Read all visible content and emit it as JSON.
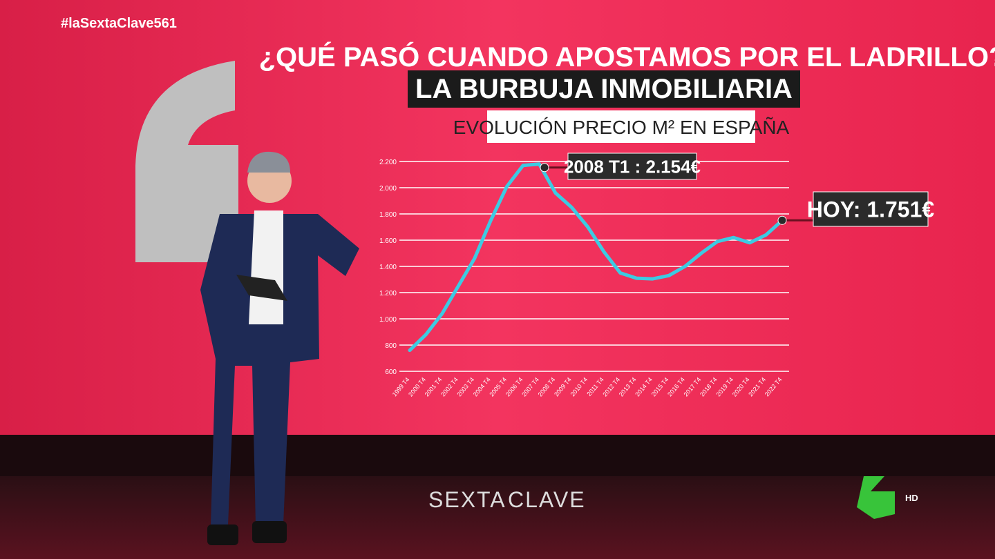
{
  "chart_data": {
    "type": "line",
    "title": "¿QUÉ PASÓ CUANDO APOSTAMOS POR EL LADRILLO?",
    "subtitle": "LA BURBUJA INMOBILIARIA",
    "caption": "EVOLUCIÓN PRECIO M² EN ESPAÑA",
    "categories": [
      "1999 T4",
      "2000 T4",
      "2001 T4",
      "2002 T4",
      "2003 T4",
      "2004 T4",
      "2005 T4",
      "2006 T4",
      "2007 T4",
      "2008 T4",
      "2009 T4",
      "2010 T4",
      "2011 T4",
      "2012 T4",
      "2013 T4",
      "2014 T4",
      "2015 T4",
      "2016 T4",
      "2017 T4",
      "2018 T4",
      "2019 T4",
      "2020 T4",
      "2021 T4",
      "2022 T4"
    ],
    "series": [
      {
        "name": "Precio m²",
        "color": "#3ccbe2",
        "values": [
          760,
          880,
          1040,
          1250,
          1460,
          1750,
          2010,
          2170,
          2180,
          1960,
          1850,
          1700,
          1510,
          1350,
          1310,
          1305,
          1330,
          1400,
          1500,
          1590,
          1620,
          1580,
          1640,
          1751
        ]
      }
    ],
    "ylim": [
      600,
      2200
    ],
    "yticks": [
      600,
      800,
      {
        "value": 1000,
        "label": "1.000"
      },
      {
        "value": 1200,
        "label": "1.200"
      },
      {
        "value": 1400,
        "label": "1.400"
      },
      {
        "value": 1600,
        "label": "1.600"
      },
      {
        "value": 1800,
        "label": "1.800"
      },
      {
        "value": 2000,
        "label": "2.000"
      },
      {
        "value": 2200,
        "label": "2.200"
      }
    ],
    "grid": true,
    "annotations": [
      {
        "label": "2008 T1 : 2.154€",
        "value": 2154
      },
      {
        "label": "HOY: 1.751€",
        "value": 1751
      }
    ]
  },
  "overlay": {
    "hashtag": "#laSextaClave561",
    "logo_left": "SEXTA",
    "logo_right": "CLAVE",
    "hd": "HD"
  }
}
